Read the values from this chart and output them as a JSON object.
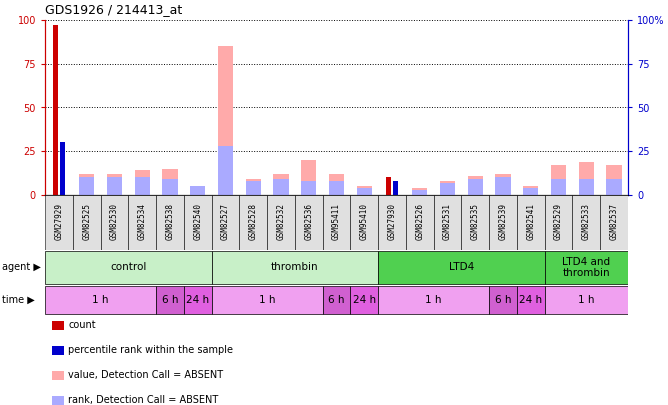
{
  "title": "GDS1926 / 214413_at",
  "samples": [
    "GSM27929",
    "GSM82525",
    "GSM82530",
    "GSM82534",
    "GSM82538",
    "GSM82540",
    "GSM82527",
    "GSM82528",
    "GSM82532",
    "GSM82536",
    "GSM95411",
    "GSM95410",
    "GSM27930",
    "GSM82526",
    "GSM82531",
    "GSM82535",
    "GSM82539",
    "GSM82541",
    "GSM82529",
    "GSM82533",
    "GSM82537"
  ],
  "count_values": [
    97,
    0,
    0,
    0,
    0,
    0,
    0,
    0,
    0,
    0,
    0,
    0,
    10,
    0,
    0,
    0,
    0,
    0,
    0,
    0,
    0
  ],
  "percentile_values": [
    30,
    0,
    0,
    0,
    0,
    0,
    0,
    0,
    0,
    0,
    0,
    0,
    8,
    0,
    0,
    0,
    0,
    0,
    0,
    0,
    0
  ],
  "absent_value_vals": [
    0,
    12,
    12,
    14,
    15,
    0,
    85,
    9,
    12,
    20,
    12,
    5,
    0,
    4,
    8,
    11,
    12,
    5,
    17,
    19,
    17
  ],
  "absent_rank_vals": [
    0,
    10,
    10,
    10,
    9,
    5,
    28,
    8,
    9,
    8,
    8,
    4,
    0,
    3,
    7,
    9,
    10,
    4,
    9,
    9,
    9
  ],
  "agent_groups": [
    {
      "label": "control",
      "start": 0,
      "end": 6,
      "color": "#c8f0c8"
    },
    {
      "label": "thrombin",
      "start": 6,
      "end": 12,
      "color": "#c8f0c8"
    },
    {
      "label": "LTD4",
      "start": 12,
      "end": 18,
      "color": "#50d050"
    },
    {
      "label": "LTD4 and\nthrombin",
      "start": 18,
      "end": 21,
      "color": "#50d050"
    }
  ],
  "time_groups": [
    {
      "label": "1 h",
      "start": 0,
      "end": 4,
      "color": "#f0a0f0"
    },
    {
      "label": "6 h",
      "start": 4,
      "end": 5,
      "color": "#d060d0"
    },
    {
      "label": "24 h",
      "start": 5,
      "end": 6,
      "color": "#e060e0"
    },
    {
      "label": "1 h",
      "start": 6,
      "end": 10,
      "color": "#f0a0f0"
    },
    {
      "label": "6 h",
      "start": 10,
      "end": 11,
      "color": "#d060d0"
    },
    {
      "label": "24 h",
      "start": 11,
      "end": 12,
      "color": "#e060e0"
    },
    {
      "label": "1 h",
      "start": 12,
      "end": 16,
      "color": "#f0a0f0"
    },
    {
      "label": "6 h",
      "start": 16,
      "end": 17,
      "color": "#d060d0"
    },
    {
      "label": "24 h",
      "start": 17,
      "end": 18,
      "color": "#e060e0"
    },
    {
      "label": "1 h",
      "start": 18,
      "end": 21,
      "color": "#f0a0f0"
    }
  ],
  "yticks": [
    0,
    25,
    50,
    75,
    100
  ],
  "ytick_labels_right": [
    "0",
    "25",
    "50",
    "75",
    "100%"
  ],
  "color_count": "#cc0000",
  "color_percentile": "#0000cc",
  "color_absent_value": "#ffaaaa",
  "color_absent_rank": "#aaaaff",
  "tick_color_left": "#cc0000",
  "tick_color_right": "#0000cc",
  "background_color": "#ffffff",
  "legend": [
    {
      "color": "#cc0000",
      "label": "count"
    },
    {
      "color": "#0000cc",
      "label": "percentile rank within the sample"
    },
    {
      "color": "#ffaaaa",
      "label": "value, Detection Call = ABSENT"
    },
    {
      "color": "#aaaaff",
      "label": "rank, Detection Call = ABSENT"
    }
  ]
}
